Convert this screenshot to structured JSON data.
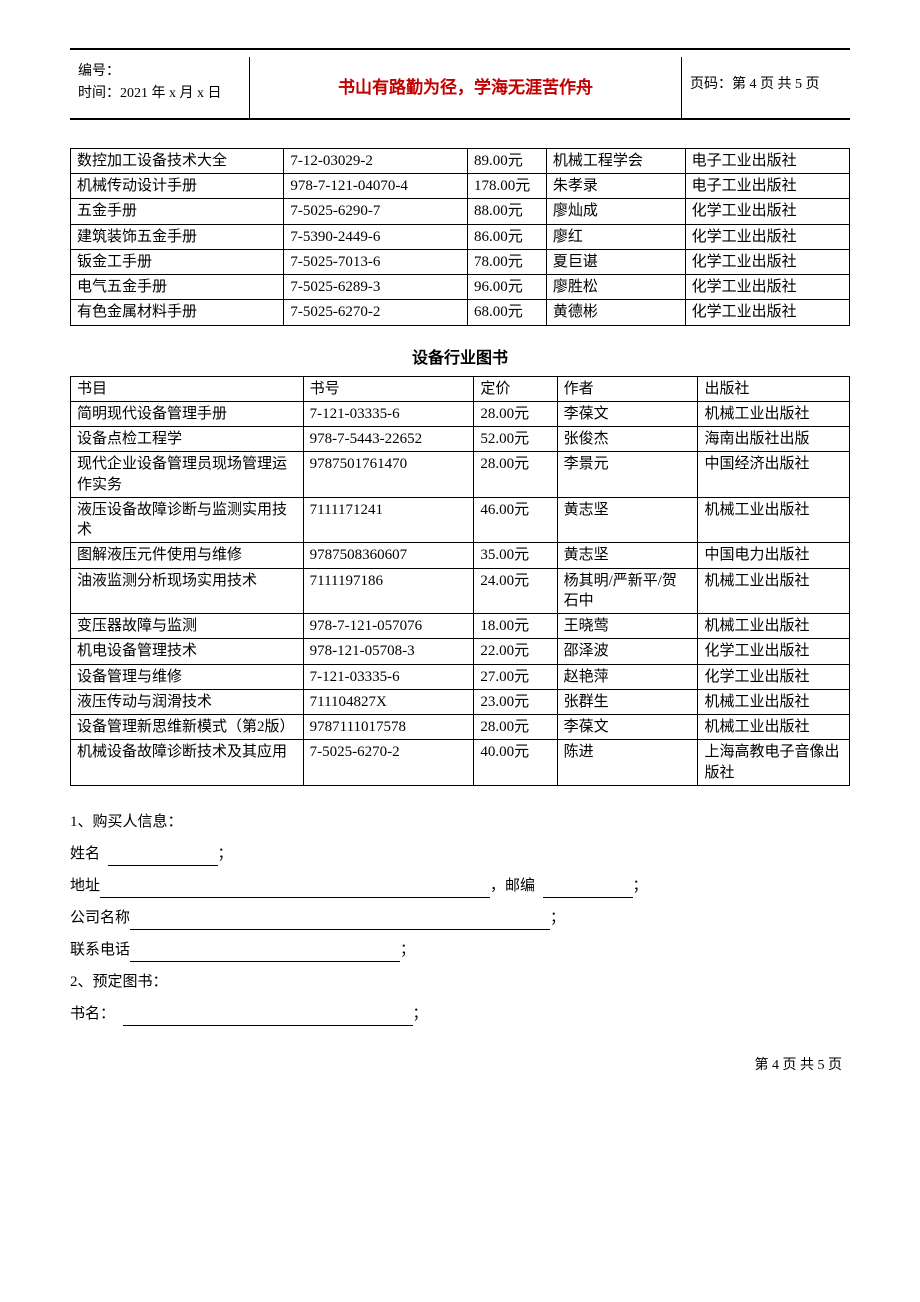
{
  "header": {
    "serial_label": "编号：",
    "time_label": "时间：2021 年 x 月 x 日",
    "motto": "书山有路勤为径，学海无涯苦作舟",
    "page_label": "页码：第 4 页 共 5 页"
  },
  "table1": {
    "col_widths": [
      "200px",
      "172px",
      "74px",
      "130px",
      "154px"
    ],
    "rows": [
      [
        "数控加工设备技术大全",
        "7-12-03029-2",
        "89.00元",
        "机械工程学会",
        "电子工业出版社"
      ],
      [
        "机械传动设计手册",
        "978-7-121-04070-4",
        "178.00元",
        "朱孝录",
        "电子工业出版社"
      ],
      [
        "五金手册",
        "7-5025-6290-7",
        "88.00元",
        "廖灿成",
        "化学工业出版社"
      ],
      [
        "建筑装饰五金手册",
        "7-5390-2449-6",
        "86.00元",
        "廖红",
        "化学工业出版社"
      ],
      [
        "钣金工手册",
        "7-5025-7013-6",
        "78.00元",
        "夏巨谌",
        "化学工业出版社"
      ],
      [
        "电气五金手册",
        "7-5025-6289-3",
        "96.00元",
        "廖胜松",
        "化学工业出版社"
      ],
      [
        "有色金属材料手册",
        "7-5025-6270-2",
        "68.00元",
        "黄德彬",
        "化学工业出版社"
      ]
    ]
  },
  "section2_title": "设备行业图书",
  "table2": {
    "col_widths": [
      "218px",
      "160px",
      "78px",
      "132px",
      "142px"
    ],
    "header": [
      "书目",
      "书号",
      "定价",
      "作者",
      "出版社"
    ],
    "rows": [
      [
        "简明现代设备管理手册",
        "7-121-03335-6",
        "28.00元",
        "李葆文",
        "机械工业出版社"
      ],
      [
        "设备点检工程学",
        "978-7-5443-22652",
        "52.00元",
        "张俊杰",
        "海南出版社出版"
      ],
      [
        "现代企业设备管理员现场管理运作实务",
        "9787501761470",
        "28.00元",
        "李景元",
        "中国经济出版社"
      ],
      [
        "液压设备故障诊断与监测实用技术",
        "7111171241",
        "46.00元",
        "黄志坚",
        "机械工业出版社"
      ],
      [
        "图解液压元件使用与维修",
        "9787508360607",
        "35.00元",
        "黄志坚",
        "中国电力出版社"
      ],
      [
        "油液监测分析现场实用技术",
        "7111197186",
        "24.00元",
        "杨其明/严新平/贺石中",
        "机械工业出版社"
      ],
      [
        "变压器故障与监测",
        "978-7-121-057076",
        "18.00元",
        "王晓莺",
        "机械工业出版社"
      ],
      [
        "机电设备管理技术",
        "978-121-05708-3",
        "22.00元",
        "邵泽波",
        "化学工业出版社"
      ],
      [
        "设备管理与维修",
        "7-121-03335-6",
        "27.00元",
        "赵艳萍",
        "化学工业出版社"
      ],
      [
        "液压传动与润滑技术",
        "711104827X",
        "23.00元",
        "张群生",
        "机械工业出版社"
      ],
      [
        "设备管理新思维新模式（第2版）",
        "9787111017578",
        "28.00元",
        "李葆文",
        "机械工业出版社"
      ],
      [
        "机械设备故障诊断技术及其应用",
        "7-5025-6270-2",
        "40.00元",
        "陈进",
        "上海高教电子音像出版社"
      ]
    ]
  },
  "form": {
    "line1": "1、购买人信息：",
    "name_label": "姓名",
    "addr_label": "地址",
    "zip_label": "，邮编",
    "company_label": "公司名称",
    "phone_label": "联系电话",
    "line2": "2、预定图书：",
    "book_label": "书名：",
    "semi": "；"
  },
  "footer": "第 4 页 共 5 页"
}
